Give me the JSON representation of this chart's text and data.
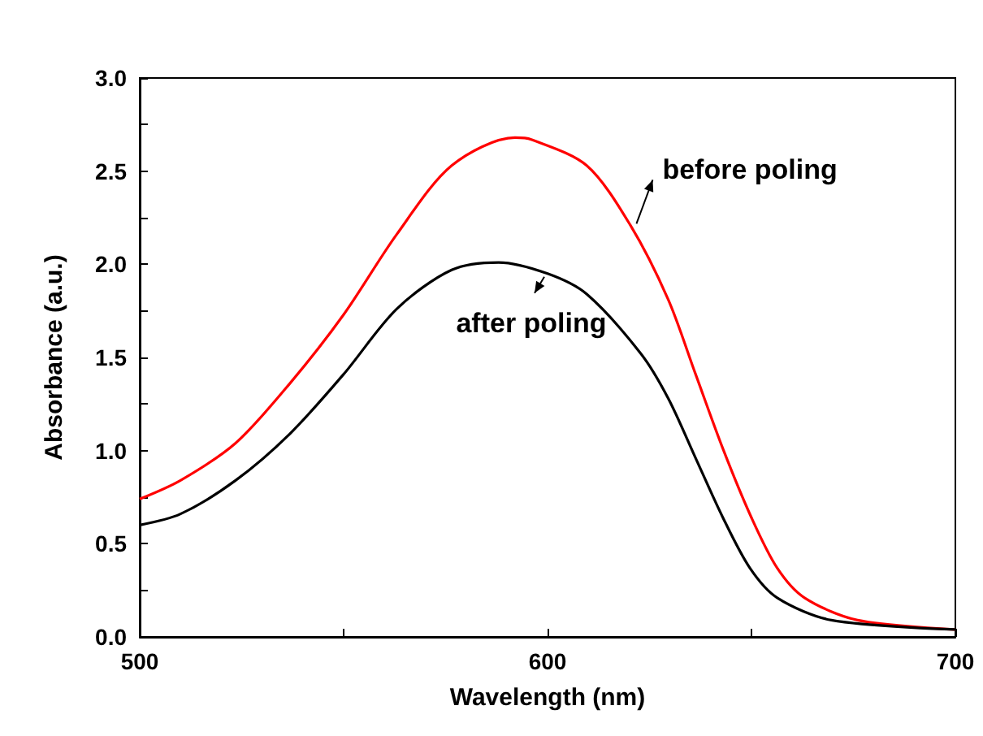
{
  "chart_data": {
    "type": "line",
    "xlabel": "Wavelength (nm)",
    "ylabel": "Absorbance (a.u.)",
    "xlim": [
      500,
      700
    ],
    "xticks": [
      500,
      {
        "value": 550,
        "label": null
      },
      600,
      {
        "value": 650,
        "label": null
      },
      700
    ],
    "ylim": [
      0,
      3.0
    ],
    "yticks": [
      {
        "value": 0,
        "label": "0.0"
      },
      {
        "value": 0.25,
        "label": null
      },
      {
        "value": 0.5,
        "label": "0.5"
      },
      {
        "value": 0.75,
        "label": null
      },
      {
        "value": 1.0,
        "label": "1.0"
      },
      {
        "value": 1.25,
        "label": null
      },
      {
        "value": 1.5,
        "label": "1.5"
      },
      {
        "value": 1.75,
        "label": null
      },
      {
        "value": 2.0,
        "label": "2.0"
      },
      {
        "value": 2.25,
        "label": null
      },
      {
        "value": 2.5,
        "label": "2.5"
      },
      {
        "value": 2.75,
        "label": null
      },
      {
        "value": 3.0,
        "label": "3.0"
      }
    ],
    "grid": false,
    "marker": "none",
    "line_style": "solid",
    "series": [
      {
        "color": "#ff0000",
        "x": [
          500,
          510,
          523.5,
          536.8,
          550,
          563,
          576.5,
          592,
          596,
          609.6,
          620.3,
          629.6,
          636.3,
          643,
          650,
          656.3,
          663,
          676,
          700
        ],
        "values": [
          0.74,
          0.84,
          1.04,
          1.36,
          1.73,
          2.16,
          2.53,
          2.68,
          2.67,
          2.53,
          2.21,
          1.81,
          1.41,
          1.01,
          0.64,
          0.37,
          0.21,
          0.09,
          0.04
        ]
      },
      {
        "color": "#000000",
        "x": [
          500,
          510,
          523.5,
          536.8,
          550,
          563,
          576.5,
          588,
          600,
          609.6,
          622.9,
          629.6,
          636.3,
          643,
          649.6,
          656.3,
          669.6,
          700
        ],
        "values": [
          0.6,
          0.66,
          0.84,
          1.09,
          1.41,
          1.76,
          1.97,
          2.01,
          1.95,
          1.84,
          1.52,
          1.28,
          0.96,
          0.64,
          0.37,
          0.21,
          0.09,
          0.04
        ]
      }
    ],
    "annotations": [
      {
        "text": "before poling",
        "x": 621,
        "y": 2.2
      },
      {
        "text": "after poling",
        "x": 600,
        "y": 1.95
      }
    ]
  }
}
